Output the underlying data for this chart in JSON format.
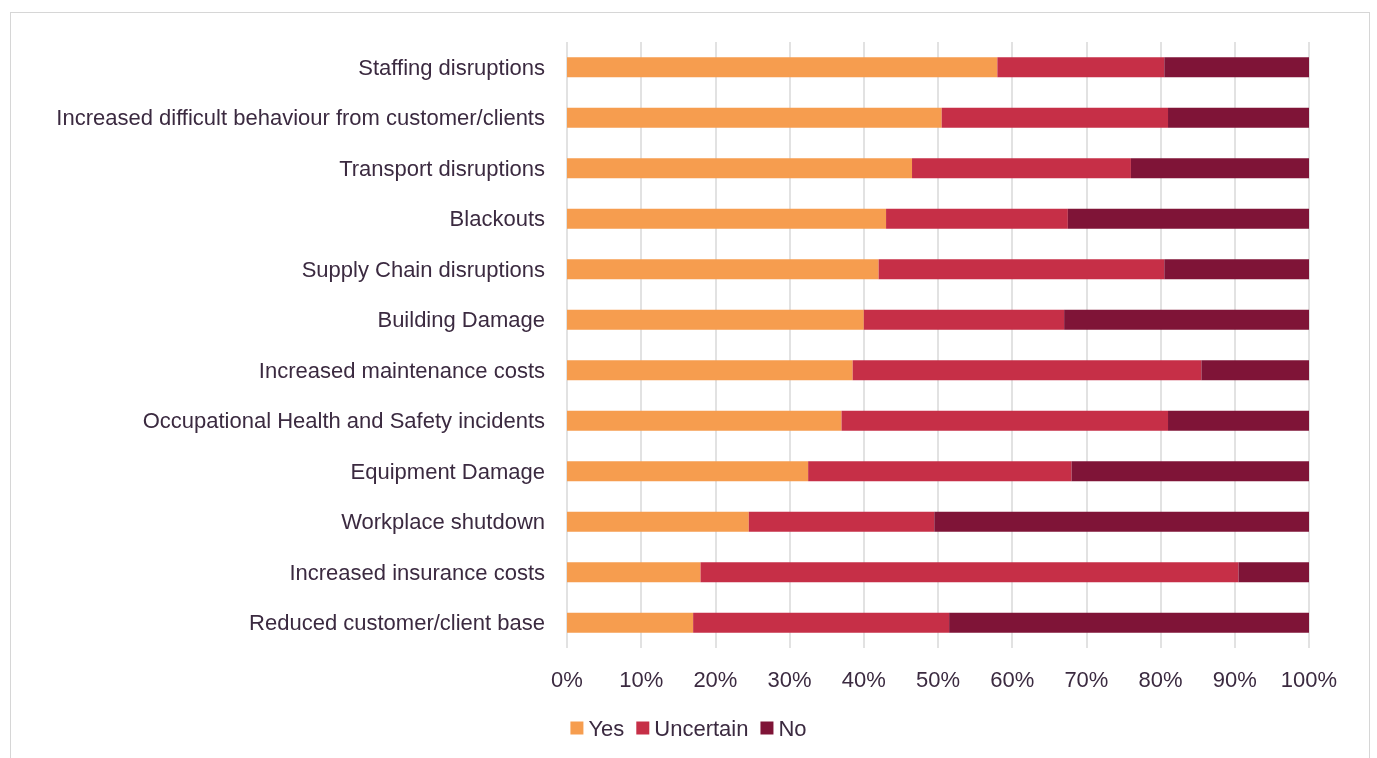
{
  "chart_data": {
    "type": "bar",
    "orientation": "horizontal",
    "stacked": true,
    "categories": [
      "Staffing disruptions",
      "Increased difficult behaviour from customer/clients",
      "Transport disruptions",
      "Blackouts",
      "Supply Chain disruptions",
      "Building Damage",
      "Increased maintenance costs",
      "Occupational Health and Safety incidents",
      "Equipment Damage",
      "Workplace shutdown",
      "Increased insurance costs",
      "Reduced customer/client base"
    ],
    "series": [
      {
        "name": "Yes",
        "color": "#f69d4f",
        "values": [
          58,
          50.5,
          46.5,
          43,
          42,
          40,
          38.5,
          37,
          32.5,
          24.5,
          18,
          17
        ]
      },
      {
        "name": "Uncertain",
        "color": "#c62f47",
        "values": [
          22.5,
          30.5,
          29.5,
          24.5,
          38.5,
          27,
          47,
          44,
          35.5,
          25,
          72.5,
          34.5
        ]
      },
      {
        "name": "No",
        "color": "#7f1437",
        "values": [
          19.5,
          19,
          24,
          32.5,
          19.5,
          33,
          14.5,
          19,
          32,
          50.5,
          9.5,
          48.5
        ]
      }
    ],
    "xlim": [
      0,
      100
    ],
    "xticks": [
      {
        "value": 0,
        "label": "0%"
      },
      {
        "value": 10,
        "label": "10%"
      },
      {
        "value": 20,
        "label": "20%"
      },
      {
        "value": 30,
        "label": "30%"
      },
      {
        "value": 40,
        "label": "40%"
      },
      {
        "value": 50,
        "label": "50%"
      },
      {
        "value": 60,
        "label": "60%"
      },
      {
        "value": 70,
        "label": "70%"
      },
      {
        "value": 80,
        "label": "80%"
      },
      {
        "value": 90,
        "label": "90%"
      },
      {
        "value": 100,
        "label": "100%"
      }
    ],
    "grid": "x",
    "legend": "bottom"
  }
}
